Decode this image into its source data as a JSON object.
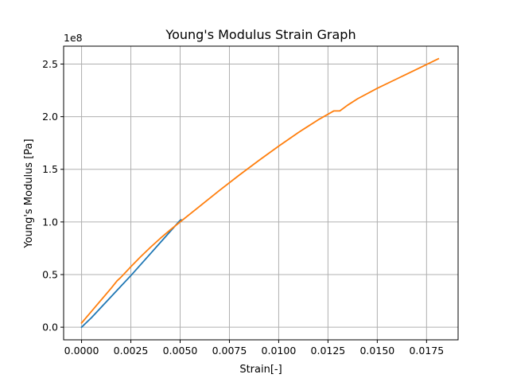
{
  "chart_data": {
    "type": "line",
    "title": "Young's Modulus Strain Graph",
    "xlabel": "Strain[-]",
    "ylabel": "Young's Modulus [Pa]",
    "y_offset_label": "1e8",
    "xlim": [
      -0.00091,
      0.0191
    ],
    "ylim": [
      -12000000.0,
      267000000.0
    ],
    "x_ticks": [
      0.0,
      0.0025,
      0.005,
      0.0075,
      0.01,
      0.0125,
      0.015,
      0.0175
    ],
    "x_tick_labels": [
      "0.0000",
      "0.0025",
      "0.0050",
      "0.0075",
      "0.0100",
      "0.0125",
      "0.0150",
      "0.0175"
    ],
    "y_ticks": [
      0.0,
      50000000.0,
      100000000.0,
      150000000.0,
      200000000.0,
      250000000.0
    ],
    "y_tick_labels": [
      "0.0",
      "0.5",
      "1.0",
      "1.5",
      "2.0",
      "2.5"
    ],
    "grid": true,
    "series": [
      {
        "color": "#1f77b4",
        "x": [
          0.0,
          0.0005,
          0.001,
          0.0015,
          0.002,
          0.0025,
          0.003,
          0.0035,
          0.004,
          0.0045,
          0.005,
          0.00505
        ],
        "y": [
          0.0,
          9000000.0,
          19000000.0,
          29000000.0,
          39000000.0,
          49000000.0,
          59500000.0,
          70000000.0,
          80500000.0,
          91000000.0,
          101500000.0,
          102000000.0
        ]
      },
      {
        "color": "#ff7f0e",
        "x": [
          0.0,
          0.0005,
          0.001,
          0.0015,
          0.0018,
          0.002,
          0.0025,
          0.003,
          0.0035,
          0.004,
          0.0045,
          0.005,
          0.0055,
          0.006,
          0.007,
          0.008,
          0.009,
          0.01,
          0.011,
          0.012,
          0.0128,
          0.0131,
          0.0135,
          0.014,
          0.015,
          0.016,
          0.017,
          0.0181
        ],
        "y": [
          4000000.0,
          15000000.0,
          26000000.0,
          37000000.0,
          44000000.0,
          47500000.0,
          57500000.0,
          67000000.0,
          76000000.0,
          84500000.0,
          92500000.0,
          100000000.0,
          107500000.0,
          115000000.0,
          130000000.0,
          144500000.0,
          158500000.0,
          172000000.0,
          185000000.0,
          197000000.0,
          205500000.0,
          205500000.0,
          211000000.0,
          217000000.0,
          227000000.0,
          236000000.0,
          245000000.0,
          255000000.0
        ]
      }
    ]
  }
}
